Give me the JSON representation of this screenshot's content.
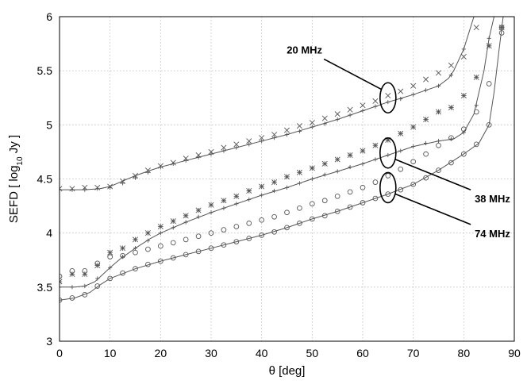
{
  "chart_data": {
    "type": "scatter",
    "title": "",
    "xlabel": "θ [deg]",
    "ylabel_parts": {
      "pre": "SEFD [ log",
      "sub": "10",
      "post": " Jy ]"
    },
    "xlim": [
      0,
      90
    ],
    "ylim": [
      3,
      6
    ],
    "xticks": [
      0,
      10,
      20,
      30,
      40,
      50,
      60,
      70,
      80,
      90
    ],
    "yticks": [
      3,
      3.5,
      4,
      4.5,
      5,
      5.5,
      6
    ],
    "ytick_labels": [
      "3",
      "3.5",
      "4",
      "4.5",
      "5",
      "5.5",
      "6"
    ],
    "grid": true,
    "series": [
      {
        "name": "20 MHz",
        "model_line": [
          [
            0,
            4.4
          ],
          [
            5,
            4.4
          ],
          [
            8,
            4.41
          ],
          [
            10,
            4.43
          ],
          [
            12,
            4.47
          ],
          [
            15,
            4.53
          ],
          [
            18,
            4.58
          ],
          [
            20,
            4.61
          ],
          [
            25,
            4.67
          ],
          [
            30,
            4.73
          ],
          [
            35,
            4.79
          ],
          [
            40,
            4.85
          ],
          [
            45,
            4.91
          ],
          [
            50,
            4.98
          ],
          [
            55,
            5.05
          ],
          [
            60,
            5.13
          ],
          [
            65,
            5.21
          ],
          [
            70,
            5.28
          ],
          [
            75,
            5.36
          ],
          [
            77,
            5.43
          ],
          [
            78,
            5.5
          ],
          [
            80,
            5.7
          ],
          [
            82,
            6.0
          ]
        ],
        "model_markers": [
          [
            0,
            4.4
          ],
          [
            2.5,
            4.4
          ],
          [
            5,
            4.4
          ],
          [
            7.5,
            4.41
          ],
          [
            10,
            4.42
          ],
          [
            12.5,
            4.46
          ],
          [
            15,
            4.51
          ],
          [
            17.5,
            4.56
          ],
          [
            20,
            4.61
          ],
          [
            22.5,
            4.64
          ],
          [
            25,
            4.67
          ],
          [
            27.5,
            4.7
          ],
          [
            30,
            4.73
          ],
          [
            32.5,
            4.76
          ],
          [
            35,
            4.79
          ],
          [
            37.5,
            4.82
          ],
          [
            40,
            4.85
          ],
          [
            42.5,
            4.88
          ],
          [
            45,
            4.91
          ],
          [
            47.5,
            4.94
          ],
          [
            50,
            4.98
          ],
          [
            52.5,
            5.01
          ],
          [
            55,
            5.05
          ],
          [
            57.5,
            5.09
          ],
          [
            60,
            5.13
          ],
          [
            62.5,
            5.17
          ],
          [
            65,
            5.21
          ],
          [
            67.5,
            5.24
          ],
          [
            70,
            5.28
          ],
          [
            72.5,
            5.32
          ],
          [
            75,
            5.36
          ],
          [
            77.5,
            5.46
          ],
          [
            80,
            5.7
          ]
        ],
        "measured": [
          [
            0,
            4.41
          ],
          [
            2.5,
            4.41
          ],
          [
            5,
            4.42
          ],
          [
            7.5,
            4.42
          ],
          [
            10,
            4.43
          ],
          [
            12.5,
            4.48
          ],
          [
            15,
            4.53
          ],
          [
            17.5,
            4.58
          ],
          [
            20,
            4.62
          ],
          [
            22.5,
            4.65
          ],
          [
            25,
            4.69
          ],
          [
            27.5,
            4.72
          ],
          [
            30,
            4.75
          ],
          [
            32.5,
            4.79
          ],
          [
            35,
            4.82
          ],
          [
            37.5,
            4.85
          ],
          [
            40,
            4.88
          ],
          [
            42.5,
            4.91
          ],
          [
            45,
            4.95
          ],
          [
            47.5,
            4.99
          ],
          [
            50,
            5.02
          ],
          [
            52.5,
            5.06
          ],
          [
            55,
            5.1
          ],
          [
            57.5,
            5.14
          ],
          [
            60,
            5.18
          ],
          [
            62.5,
            5.22
          ],
          [
            65,
            5.27
          ],
          [
            67.5,
            5.31
          ],
          [
            70,
            5.36
          ],
          [
            72.5,
            5.42
          ],
          [
            75,
            5.48
          ],
          [
            77.5,
            5.55
          ],
          [
            80,
            5.63
          ],
          [
            82.5,
            5.9
          ]
        ]
      },
      {
        "name": "38 MHz",
        "model_line": [
          [
            0,
            3.5
          ],
          [
            3,
            3.5
          ],
          [
            5,
            3.51
          ],
          [
            7,
            3.55
          ],
          [
            10,
            3.68
          ],
          [
            12,
            3.76
          ],
          [
            15,
            3.86
          ],
          [
            18,
            3.95
          ],
          [
            20,
            4.0
          ],
          [
            25,
            4.1
          ],
          [
            30,
            4.19
          ],
          [
            35,
            4.27
          ],
          [
            40,
            4.35
          ],
          [
            45,
            4.42
          ],
          [
            50,
            4.5
          ],
          [
            55,
            4.57
          ],
          [
            60,
            4.64
          ],
          [
            65,
            4.72
          ],
          [
            70,
            4.8
          ],
          [
            75,
            4.85
          ],
          [
            78,
            4.87
          ],
          [
            80,
            4.93
          ],
          [
            82,
            5.1
          ],
          [
            84,
            5.5
          ],
          [
            85,
            5.8
          ],
          [
            86,
            6.0
          ]
        ],
        "model_markers": [
          [
            0,
            3.5
          ],
          [
            2.5,
            3.5
          ],
          [
            5,
            3.51
          ],
          [
            7.5,
            3.58
          ],
          [
            10,
            3.68
          ],
          [
            12.5,
            3.78
          ],
          [
            15,
            3.86
          ],
          [
            17.5,
            3.93
          ],
          [
            20,
            4.0
          ],
          [
            22.5,
            4.05
          ],
          [
            25,
            4.1
          ],
          [
            27.5,
            4.15
          ],
          [
            30,
            4.19
          ],
          [
            32.5,
            4.23
          ],
          [
            35,
            4.27
          ],
          [
            37.5,
            4.31
          ],
          [
            40,
            4.35
          ],
          [
            42.5,
            4.39
          ],
          [
            45,
            4.42
          ],
          [
            47.5,
            4.46
          ],
          [
            50,
            4.5
          ],
          [
            52.5,
            4.54
          ],
          [
            55,
            4.57
          ],
          [
            57.5,
            4.61
          ],
          [
            60,
            4.64
          ],
          [
            62.5,
            4.68
          ],
          [
            65,
            4.72
          ],
          [
            67.5,
            4.76
          ],
          [
            70,
            4.8
          ],
          [
            72.5,
            4.83
          ],
          [
            75,
            4.85
          ],
          [
            77.5,
            4.87
          ],
          [
            80,
            4.93
          ],
          [
            82.5,
            5.18
          ],
          [
            85,
            5.8
          ]
        ],
        "measured": [
          [
            0,
            3.55
          ],
          [
            2.5,
            3.62
          ],
          [
            5,
            3.62
          ],
          [
            7.5,
            3.7
          ],
          [
            10,
            3.82
          ],
          [
            12.5,
            3.86
          ],
          [
            15,
            3.94
          ],
          [
            17.5,
            4.0
          ],
          [
            20,
            4.06
          ],
          [
            22.5,
            4.11
          ],
          [
            25,
            4.16
          ],
          [
            27.5,
            4.21
          ],
          [
            30,
            4.26
          ],
          [
            32.5,
            4.3
          ],
          [
            35,
            4.34
          ],
          [
            37.5,
            4.39
          ],
          [
            40,
            4.43
          ],
          [
            42.5,
            4.47
          ],
          [
            45,
            4.52
          ],
          [
            47.5,
            4.56
          ],
          [
            50,
            4.6
          ],
          [
            52.5,
            4.64
          ],
          [
            55,
            4.68
          ],
          [
            57.5,
            4.72
          ],
          [
            60,
            4.76
          ],
          [
            62.5,
            4.81
          ],
          [
            65,
            4.86
          ],
          [
            67.5,
            4.92
          ],
          [
            70,
            4.98
          ],
          [
            72.5,
            5.05
          ],
          [
            75,
            5.12
          ],
          [
            77.5,
            5.16
          ],
          [
            80,
            5.27
          ],
          [
            82.5,
            5.44
          ],
          [
            85,
            5.73
          ],
          [
            87.5,
            5.9
          ]
        ]
      },
      {
        "name": "74 MHz",
        "model_line": [
          [
            0,
            3.38
          ],
          [
            3,
            3.4
          ],
          [
            6,
            3.45
          ],
          [
            8,
            3.52
          ],
          [
            10,
            3.58
          ],
          [
            15,
            3.67
          ],
          [
            20,
            3.74
          ],
          [
            25,
            3.8
          ],
          [
            30,
            3.86
          ],
          [
            35,
            3.92
          ],
          [
            40,
            3.98
          ],
          [
            45,
            4.05
          ],
          [
            50,
            4.13
          ],
          [
            55,
            4.2
          ],
          [
            60,
            4.28
          ],
          [
            65,
            4.36
          ],
          [
            70,
            4.45
          ],
          [
            75,
            4.58
          ],
          [
            80,
            4.73
          ],
          [
            83,
            4.83
          ],
          [
            85,
            5.0
          ],
          [
            86,
            5.3
          ],
          [
            87,
            5.7
          ],
          [
            87.8,
            6.0
          ]
        ],
        "model_markers": [
          [
            0,
            3.38
          ],
          [
            2.5,
            3.4
          ],
          [
            5,
            3.43
          ],
          [
            7.5,
            3.51
          ],
          [
            10,
            3.58
          ],
          [
            12.5,
            3.63
          ],
          [
            15,
            3.67
          ],
          [
            17.5,
            3.71
          ],
          [
            20,
            3.74
          ],
          [
            22.5,
            3.77
          ],
          [
            25,
            3.8
          ],
          [
            27.5,
            3.83
          ],
          [
            30,
            3.86
          ],
          [
            32.5,
            3.89
          ],
          [
            35,
            3.92
          ],
          [
            37.5,
            3.95
          ],
          [
            40,
            3.98
          ],
          [
            42.5,
            4.01
          ],
          [
            45,
            4.05
          ],
          [
            47.5,
            4.09
          ],
          [
            50,
            4.13
          ],
          [
            52.5,
            4.16
          ],
          [
            55,
            4.2
          ],
          [
            57.5,
            4.24
          ],
          [
            60,
            4.28
          ],
          [
            62.5,
            4.32
          ],
          [
            65,
            4.36
          ],
          [
            67.5,
            4.4
          ],
          [
            70,
            4.45
          ],
          [
            72.5,
            4.51
          ],
          [
            75,
            4.58
          ],
          [
            77.5,
            4.65
          ],
          [
            80,
            4.73
          ],
          [
            82.5,
            4.82
          ],
          [
            85,
            5.0
          ],
          [
            87.5,
            5.85
          ]
        ],
        "measured": [
          [
            0,
            3.6
          ],
          [
            2.5,
            3.65
          ],
          [
            5,
            3.65
          ],
          [
            7.5,
            3.72
          ],
          [
            10,
            3.78
          ],
          [
            12.5,
            3.79
          ],
          [
            15,
            3.82
          ],
          [
            17.5,
            3.85
          ],
          [
            20,
            3.88
          ],
          [
            22.5,
            3.91
          ],
          [
            25,
            3.94
          ],
          [
            27.5,
            3.97
          ],
          [
            30,
            4.0
          ],
          [
            32.5,
            4.03
          ],
          [
            35,
            4.06
          ],
          [
            37.5,
            4.09
          ],
          [
            40,
            4.12
          ],
          [
            42.5,
            4.15
          ],
          [
            45,
            4.19
          ],
          [
            47.5,
            4.23
          ],
          [
            50,
            4.27
          ],
          [
            52.5,
            4.3
          ],
          [
            55,
            4.34
          ],
          [
            57.5,
            4.38
          ],
          [
            60,
            4.42
          ],
          [
            62.5,
            4.47
          ],
          [
            65,
            4.53
          ],
          [
            67.5,
            4.59
          ],
          [
            70,
            4.66
          ],
          [
            72.5,
            4.73
          ],
          [
            75,
            4.81
          ],
          [
            77.5,
            4.88
          ],
          [
            80,
            4.96
          ],
          [
            82.5,
            5.12
          ],
          [
            85,
            5.38
          ],
          [
            87.5,
            5.9
          ]
        ]
      }
    ],
    "annotations": [
      {
        "id": "a20",
        "text": "20 MHz",
        "target": [
          65,
          5.25
        ],
        "label_at": [
          52,
          5.66
        ]
      },
      {
        "id": "a38",
        "text": "38 MHz",
        "target": [
          65,
          4.74
        ],
        "label_at": [
          82,
          4.37
        ]
      },
      {
        "id": "a74",
        "text": "74 MHz",
        "target": [
          65,
          4.42
        ],
        "label_at": [
          82,
          4.05
        ]
      }
    ]
  }
}
